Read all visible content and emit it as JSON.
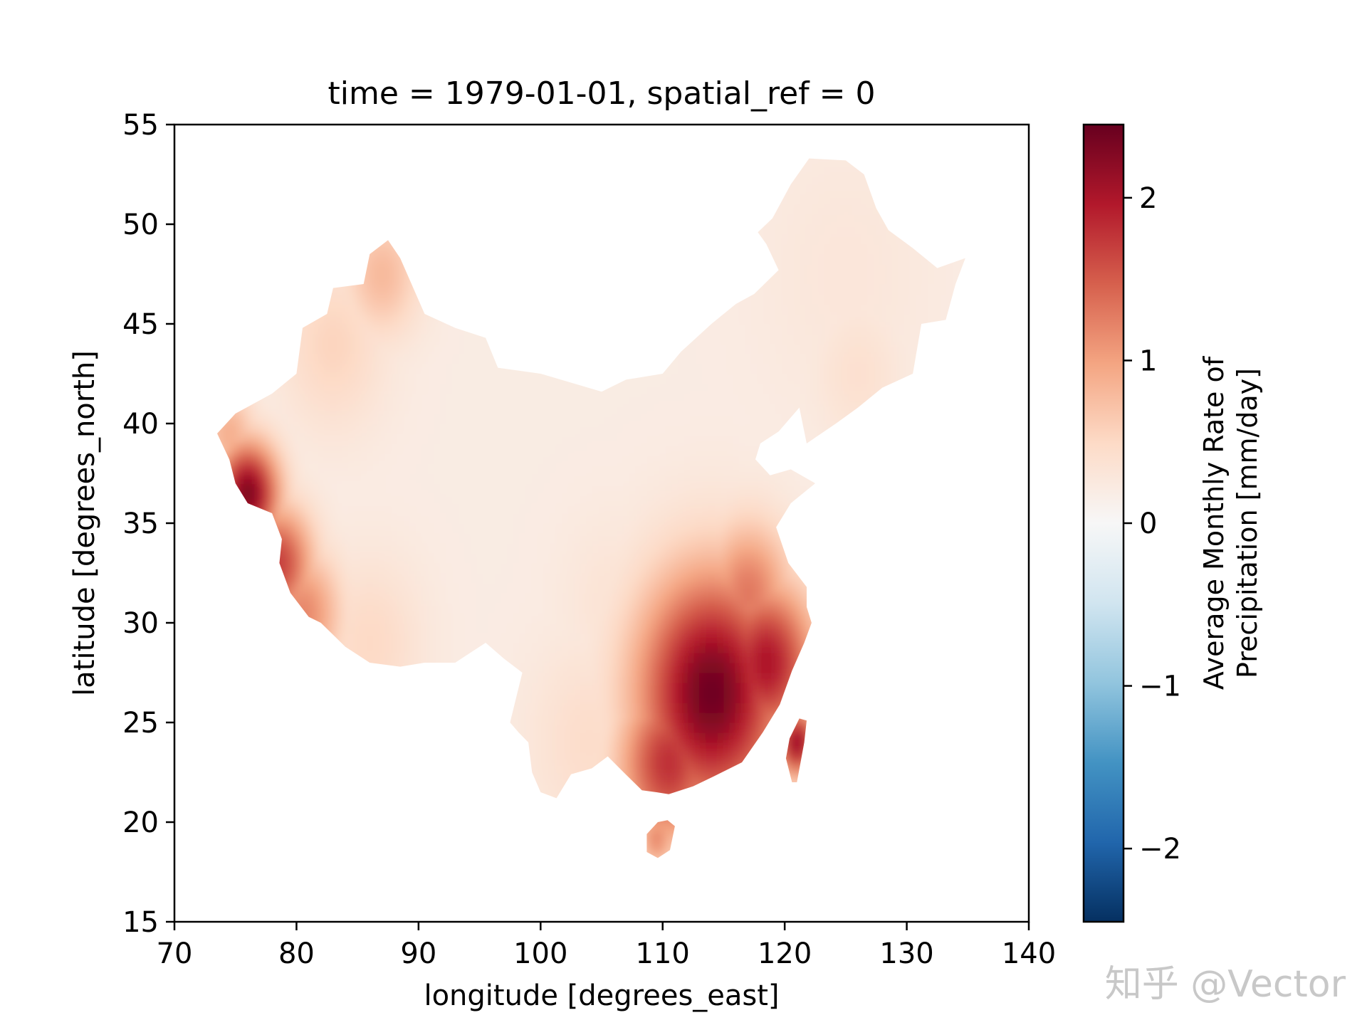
{
  "chart_data": {
    "type": "heatmap",
    "title": "time = 1979-01-01, spatial_ref = 0",
    "xlabel": "longitude [degrees_east]",
    "ylabel": "latitude [degrees_north]",
    "xlim": [
      70,
      140
    ],
    "ylim": [
      15,
      55
    ],
    "xticks": [
      70,
      80,
      90,
      100,
      110,
      120,
      130,
      140
    ],
    "yticks": [
      15,
      20,
      25,
      30,
      35,
      40,
      45,
      50,
      55
    ],
    "colorbar": {
      "label_line1": "Average Monthly Rate of",
      "label_line2": "Precipitation [mm/day]",
      "range": [
        -2.45,
        2.45
      ],
      "ticks": [
        -2,
        -1,
        0,
        1,
        2
      ],
      "tick_labels": [
        "−2",
        "−1",
        "0",
        "1",
        "2"
      ],
      "colormap": "RdBu_r",
      "colors": [
        "#053061",
        "#2166ac",
        "#4393c3",
        "#92c5de",
        "#d1e5f0",
        "#f7f7f7",
        "#fddbc7",
        "#f4a582",
        "#d6604d",
        "#b2182b",
        "#67001f"
      ]
    },
    "region": "China",
    "region_outline_lonlat": [
      [
        73.5,
        39.5
      ],
      [
        75.0,
        40.5
      ],
      [
        76.5,
        41.0
      ],
      [
        78.0,
        41.5
      ],
      [
        80.0,
        42.5
      ],
      [
        80.5,
        44.8
      ],
      [
        82.5,
        45.5
      ],
      [
        83.0,
        46.8
      ],
      [
        85.5,
        47.0
      ],
      [
        86.0,
        48.5
      ],
      [
        87.5,
        49.2
      ],
      [
        88.5,
        48.3
      ],
      [
        90.5,
        45.5
      ],
      [
        93.0,
        44.8
      ],
      [
        95.5,
        44.3
      ],
      [
        96.5,
        42.8
      ],
      [
        100.0,
        42.5
      ],
      [
        105.0,
        41.6
      ],
      [
        107.0,
        42.2
      ],
      [
        110.0,
        42.5
      ],
      [
        111.5,
        43.6
      ],
      [
        114.0,
        45.0
      ],
      [
        116.0,
        46.0
      ],
      [
        117.5,
        46.5
      ],
      [
        119.5,
        47.7
      ],
      [
        118.5,
        49.0
      ],
      [
        117.8,
        49.6
      ],
      [
        119.0,
        50.3
      ],
      [
        120.5,
        52.0
      ],
      [
        122.0,
        53.3
      ],
      [
        125.0,
        53.2
      ],
      [
        126.5,
        52.5
      ],
      [
        127.5,
        50.8
      ],
      [
        128.5,
        49.7
      ],
      [
        130.5,
        48.8
      ],
      [
        132.5,
        47.8
      ],
      [
        134.8,
        48.3
      ],
      [
        134.0,
        47.0
      ],
      [
        133.2,
        45.2
      ],
      [
        131.2,
        45.0
      ],
      [
        130.5,
        42.5
      ],
      [
        128.0,
        41.8
      ],
      [
        126.0,
        40.8
      ],
      [
        124.2,
        40.0
      ],
      [
        121.8,
        39.0
      ],
      [
        121.2,
        40.8
      ],
      [
        119.5,
        39.6
      ],
      [
        118.0,
        39.0
      ],
      [
        117.6,
        38.2
      ],
      [
        118.8,
        37.4
      ],
      [
        120.5,
        37.7
      ],
      [
        122.5,
        37.0
      ],
      [
        120.5,
        36.0
      ],
      [
        119.3,
        34.8
      ],
      [
        120.3,
        33.0
      ],
      [
        121.8,
        31.8
      ],
      [
        121.8,
        30.8
      ],
      [
        122.2,
        30.0
      ],
      [
        121.6,
        29.0
      ],
      [
        120.6,
        27.6
      ],
      [
        119.6,
        25.9
      ],
      [
        118.2,
        24.5
      ],
      [
        116.5,
        23.0
      ],
      [
        114.2,
        22.3
      ],
      [
        112.5,
        21.8
      ],
      [
        110.5,
        21.4
      ],
      [
        109.5,
        21.5
      ],
      [
        108.3,
        21.6
      ],
      [
        106.8,
        22.5
      ],
      [
        105.5,
        23.3
      ],
      [
        104.2,
        22.7
      ],
      [
        102.5,
        22.4
      ],
      [
        101.3,
        21.2
      ],
      [
        100.0,
        21.5
      ],
      [
        99.3,
        22.5
      ],
      [
        99.0,
        24.0
      ],
      [
        98.2,
        24.5
      ],
      [
        97.5,
        25.0
      ],
      [
        98.5,
        27.5
      ],
      [
        97.0,
        28.2
      ],
      [
        95.5,
        29.0
      ],
      [
        93.0,
        28.0
      ],
      [
        90.5,
        28.0
      ],
      [
        88.5,
        27.8
      ],
      [
        86.0,
        28.0
      ],
      [
        84.0,
        28.8
      ],
      [
        82.0,
        30.0
      ],
      [
        81.0,
        30.3
      ],
      [
        79.5,
        31.5
      ],
      [
        78.6,
        33.0
      ],
      [
        78.8,
        34.2
      ],
      [
        78.0,
        35.5
      ],
      [
        76.0,
        36.0
      ],
      [
        75.0,
        37.0
      ],
      [
        74.5,
        38.2
      ]
    ],
    "hainan_outline_lonlat": [
      [
        108.7,
        18.5
      ],
      [
        109.6,
        18.2
      ],
      [
        110.6,
        18.6
      ],
      [
        111.0,
        19.8
      ],
      [
        110.4,
        20.1
      ],
      [
        109.6,
        20.0
      ],
      [
        108.7,
        19.4
      ]
    ],
    "taiwan_outline_lonlat": [
      [
        120.1,
        23.2
      ],
      [
        120.6,
        22.0
      ],
      [
        121.0,
        22.0
      ],
      [
        121.6,
        24.0
      ],
      [
        121.8,
        25.1
      ],
      [
        121.2,
        25.2
      ],
      [
        120.4,
        24.2
      ]
    ],
    "anomaly_centers": [
      {
        "lon": 114.0,
        "lat": 26.5,
        "value": 2.4,
        "spread": 4.2
      },
      {
        "lon": 118.5,
        "lat": 28.0,
        "value": 2.0,
        "spread": 2.8
      },
      {
        "lon": 110.5,
        "lat": 23.0,
        "value": 1.8,
        "spread": 2.8
      },
      {
        "lon": 117.0,
        "lat": 31.5,
        "value": 1.3,
        "spread": 2.5
      },
      {
        "lon": 112.0,
        "lat": 30.5,
        "value": 0.9,
        "spread": 2.8
      },
      {
        "lon": 104.0,
        "lat": 24.0,
        "value": 0.45,
        "spread": 3.5
      },
      {
        "lon": 76.0,
        "lat": 36.5,
        "value": 2.3,
        "spread": 1.8
      },
      {
        "lon": 78.5,
        "lat": 33.0,
        "value": 1.7,
        "spread": 2.0
      },
      {
        "lon": 80.5,
        "lat": 30.5,
        "value": 1.2,
        "spread": 2.2
      },
      {
        "lon": 86.0,
        "lat": 29.0,
        "value": 0.5,
        "spread": 3.0
      },
      {
        "lon": 74.5,
        "lat": 39.5,
        "value": 0.9,
        "spread": 1.5
      },
      {
        "lon": 87.0,
        "lat": 47.5,
        "value": 0.8,
        "spread": 2.2
      },
      {
        "lon": 83.0,
        "lat": 44.0,
        "value": 0.55,
        "spread": 3.0
      },
      {
        "lon": 125.0,
        "lat": 47.5,
        "value": 0.3,
        "spread": 5.0
      },
      {
        "lon": 126.0,
        "lat": 42.5,
        "value": 0.4,
        "spread": 2.5
      },
      {
        "lon": 106.0,
        "lat": 31.0,
        "value": 0.35,
        "spread": 3.0
      },
      {
        "lon": 121.0,
        "lat": 24.0,
        "value": 2.1,
        "spread": 1.2
      },
      {
        "lon": 109.5,
        "lat": 19.2,
        "value": 1.2,
        "spread": 1.0
      }
    ],
    "background_value": 0.2
  },
  "watermark": "知乎 @Vector"
}
